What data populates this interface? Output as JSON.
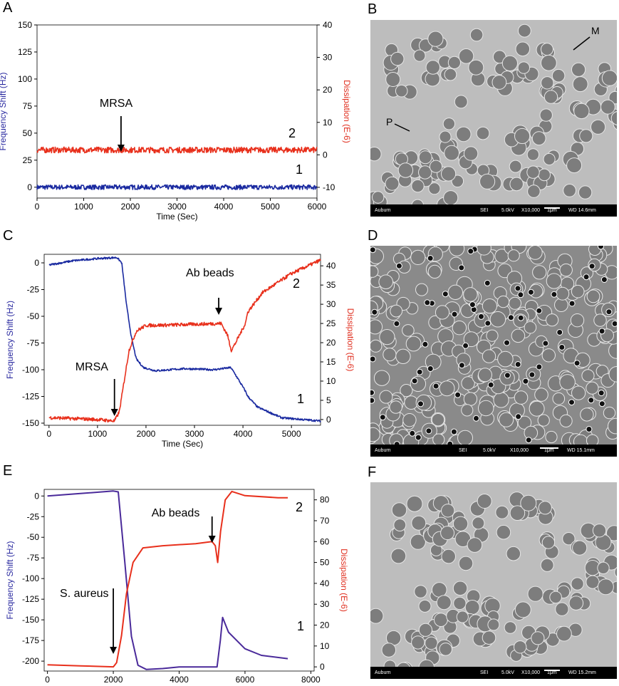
{
  "colors": {
    "freq": "#1a2aa0",
    "dissip": "#e8301c",
    "freq_e": "#4a2a9a",
    "axis": "#000000"
  },
  "chart_data": [
    {
      "panel": "A",
      "type": "line",
      "xlabel": "Time (Sec)",
      "ylabel": "Frequency Shift (Hz)",
      "y2label": "Dissipation (E-6)",
      "xlim": [
        0,
        6000
      ],
      "xticks": [
        0,
        1000,
        2000,
        3000,
        4000,
        5000,
        6000
      ],
      "ylim": [
        -10,
        150
      ],
      "yticks": [
        0,
        25,
        50,
        75,
        100,
        125,
        150
      ],
      "y2lim": [
        -13.3,
        40
      ],
      "y2ticks": [
        -10,
        0,
        10,
        20,
        30,
        40
      ],
      "arrows": [
        {
          "label": "MRSA",
          "x": 1800
        }
      ],
      "series_labels": [
        "1",
        "2"
      ],
      "series": [
        {
          "axis": "left",
          "color_key": "freq",
          "noise": 2.2,
          "points": [
            [
              0,
              0
            ],
            [
              6000,
              0
            ]
          ]
        },
        {
          "axis": "right",
          "color_key": "dissip",
          "noise": 0.9,
          "points": [
            [
              0,
              1.5
            ],
            [
              6000,
              1.5
            ]
          ]
        }
      ]
    },
    {
      "panel": "C",
      "type": "line",
      "xlabel": "Time (Sec)",
      "ylabel": "Frequency Shift (Hz)",
      "y2label": "Dissipation (E-6)",
      "xlim": [
        -100,
        5600
      ],
      "xticks": [
        0,
        1000,
        2000,
        3000,
        4000,
        5000
      ],
      "ylim": [
        -152,
        8
      ],
      "yticks": [
        0,
        -25,
        -50,
        -75,
        -100,
        -125,
        -150
      ],
      "y2lim": [
        -1.5,
        43
      ],
      "y2ticks": [
        0,
        5,
        10,
        15,
        20,
        25,
        30,
        35,
        40
      ],
      "arrows": [
        {
          "label": "MRSA",
          "x": 1350
        },
        {
          "label": "Ab beads",
          "x": 3500
        }
      ],
      "series_labels": [
        "1",
        "2"
      ],
      "series": [
        {
          "axis": "left",
          "color_key": "freq",
          "noise": 0.9,
          "points": [
            [
              0,
              -2
            ],
            [
              500,
              2
            ],
            [
              1000,
              4
            ],
            [
              1400,
              5
            ],
            [
              1500,
              0
            ],
            [
              1600,
              -40
            ],
            [
              1700,
              -70
            ],
            [
              1800,
              -90
            ],
            [
              1950,
              -98
            ],
            [
              2200,
              -101
            ],
            [
              2800,
              -99
            ],
            [
              3400,
              -100
            ],
            [
              3750,
              -98
            ],
            [
              3850,
              -105
            ],
            [
              4050,
              -120
            ],
            [
              4100,
              -125
            ],
            [
              4300,
              -135
            ],
            [
              4800,
              -145
            ],
            [
              5600,
              -148
            ]
          ]
        },
        {
          "axis": "right",
          "color_key": "dissip",
          "noise": 0.45,
          "points": [
            [
              0,
              0.5
            ],
            [
              1000,
              0
            ],
            [
              1350,
              -0.4
            ],
            [
              1450,
              2
            ],
            [
              1550,
              10
            ],
            [
              1650,
              18
            ],
            [
              1800,
              23
            ],
            [
              2000,
              24.5
            ],
            [
              2500,
              24.6
            ],
            [
              3000,
              24.8
            ],
            [
              3550,
              25
            ],
            [
              3680,
              22
            ],
            [
              3760,
              18
            ],
            [
              3850,
              20
            ],
            [
              4050,
              25
            ],
            [
              4100,
              28
            ],
            [
              4400,
              33
            ],
            [
              5000,
              38
            ],
            [
              5600,
              41.5
            ]
          ]
        }
      ]
    },
    {
      "panel": "E",
      "type": "line",
      "xlabel": "Time (Sec)",
      "ylabel": "Frequency Shift (Hz)",
      "y2label": "Dissipation (E-6)",
      "xlim": [
        -100,
        8100
      ],
      "xticks": [
        0,
        2000,
        4000,
        6000,
        8000
      ],
      "ylim": [
        -212,
        8
      ],
      "yticks": [
        0,
        -25,
        -50,
        -75,
        -100,
        -125,
        -150,
        -175,
        -200
      ],
      "y2lim": [
        -2,
        85
      ],
      "y2ticks": [
        0,
        10,
        20,
        30,
        40,
        50,
        60,
        70,
        80
      ],
      "arrows": [
        {
          "label": "S. aureus",
          "x": 2000
        },
        {
          "label": "Ab beads",
          "x": 5000
        }
      ],
      "series_labels": [
        "1",
        "2"
      ],
      "series": [
        {
          "axis": "left",
          "color_key": "freq_e",
          "noise": 0,
          "points": [
            [
              0,
              0
            ],
            [
              1000,
              3
            ],
            [
              2000,
              6
            ],
            [
              2150,
              5
            ],
            [
              2350,
              -80
            ],
            [
              2550,
              -170
            ],
            [
              2750,
              -205
            ],
            [
              3000,
              -210
            ],
            [
              3500,
              -209
            ],
            [
              4000,
              -207
            ],
            [
              5000,
              -207
            ],
            [
              5150,
              -207
            ],
            [
              5250,
              -175
            ],
            [
              5320,
              -147
            ],
            [
              5500,
              -165
            ],
            [
              6000,
              -185
            ],
            [
              6500,
              -193
            ],
            [
              7300,
              -197
            ]
          ]
        },
        {
          "axis": "right",
          "color_key": "dissip",
          "noise": 0,
          "points": [
            [
              0,
              1
            ],
            [
              1000,
              0.5
            ],
            [
              2000,
              0
            ],
            [
              2100,
              2
            ],
            [
              2250,
              15
            ],
            [
              2400,
              35
            ],
            [
              2600,
              50
            ],
            [
              2900,
              57
            ],
            [
              3500,
              58
            ],
            [
              4500,
              59
            ],
            [
              5000,
              60
            ],
            [
              5100,
              58
            ],
            [
              5170,
              50
            ],
            [
              5260,
              65
            ],
            [
              5400,
              80
            ],
            [
              5600,
              84
            ],
            [
              6000,
              82
            ],
            [
              7000,
              81
            ],
            [
              7300,
              81
            ]
          ]
        }
      ]
    }
  ],
  "panels": {
    "A": "A",
    "B": "B",
    "C": "C",
    "D": "D",
    "E": "E",
    "F": "F"
  },
  "sem_images": [
    {
      "panel": "B",
      "style": "clusters",
      "arrow_labels": [
        "M",
        "P"
      ],
      "bar": {
        "lab": "Auburn",
        "mode": "SEI",
        "kv": "5.0kV",
        "mag": "X10,000",
        "scale": "1μm",
        "wd": "WD 14.6mm"
      }
    },
    {
      "panel": "D",
      "style": "dense",
      "arrow_labels": [],
      "bar": {
        "lab": "Auburn",
        "mode": "SEI",
        "kv": "5.0kV",
        "mag": "X10,000",
        "scale": "1μm",
        "wd": "WD 15.1mm"
      }
    },
    {
      "panel": "F",
      "style": "clusters",
      "arrow_labels": [],
      "bar": {
        "lab": "Auburn",
        "mode": "SEI",
        "kv": "5.0kV",
        "mag": "X10,000",
        "scale": "1μm",
        "wd": "WD 15.2mm"
      }
    }
  ]
}
